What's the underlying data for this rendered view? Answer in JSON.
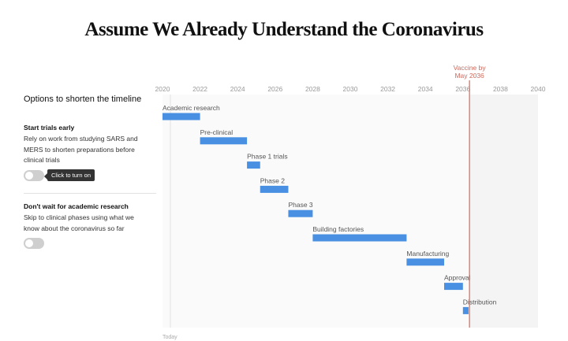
{
  "header": {
    "title": "Assume We Already Understand the Coronavirus"
  },
  "sidebar": {
    "heading": "Options to shorten the timeline",
    "options": [
      {
        "title": "Start trials early",
        "description": [
          "Rely on work from studying SARS and",
          "MERS to shorten preparations before",
          "clinical trials"
        ],
        "toggle_on": false,
        "tooltip": "Click to turn on"
      },
      {
        "title": "Don't wait for academic research",
        "description": [
          "Skip to clinical phases using what we",
          "know about the coronavirus so far"
        ],
        "toggle_on": false
      }
    ]
  },
  "colors": {
    "bar": "#4a90e2",
    "marker": "#cf6a5e",
    "shade": "#f4f4f4"
  },
  "chart_data": {
    "type": "bar",
    "x_ticks": [
      "2020",
      "2022",
      "2024",
      "2026",
      "2028",
      "2030",
      "2032",
      "2034",
      "2036",
      "2038",
      "2040"
    ],
    "xlim": [
      2020,
      2040
    ],
    "tasks": [
      {
        "label": "Academic research",
        "start": 2020.0,
        "end": 2022.0
      },
      {
        "label": "Pre-clinical",
        "start": 2022.0,
        "end": 2024.5
      },
      {
        "label": "Phase 1 trials",
        "start": 2024.5,
        "end": 2025.2
      },
      {
        "label": "Phase 2",
        "start": 2025.2,
        "end": 2026.7
      },
      {
        "label": "Phase 3",
        "start": 2026.7,
        "end": 2028.0
      },
      {
        "label": "Building factories",
        "start": 2028.0,
        "end": 2033.0
      },
      {
        "label": "Manufacturing",
        "start": 2033.0,
        "end": 2035.0
      },
      {
        "label": "Approval",
        "start": 2035.0,
        "end": 2036.0
      },
      {
        "label": "Distribution",
        "start": 2036.0,
        "end": 2036.3
      }
    ],
    "marker": {
      "label_line1": "Vaccine by",
      "label_line2": "May 2036",
      "value": 2036.35
    },
    "today_label": "Today"
  }
}
